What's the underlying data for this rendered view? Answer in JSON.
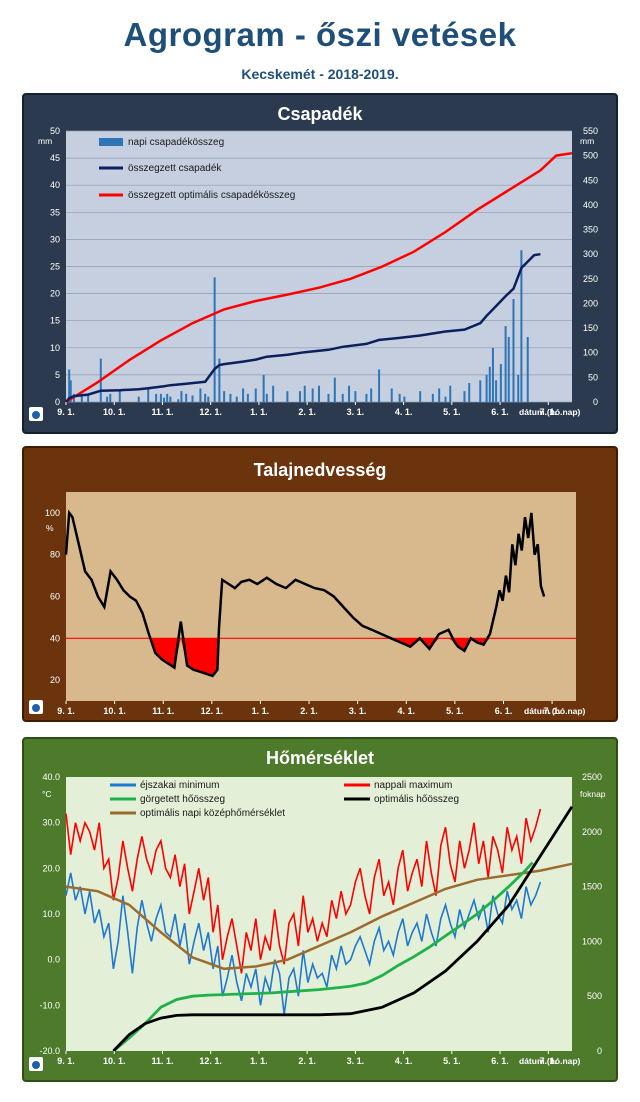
{
  "title": "Agrogram - őszi vetések",
  "subtitle": "Kecskemét - 2018-2019.",
  "colors": {
    "daily_precip": "#2e75b6",
    "cumulative_precip": "#0d1f5c",
    "optimal_precip": "#ff0000",
    "soil_moisture_line": "#000000",
    "soil_threshold": "#ff0000",
    "night_min": "#1f78d1",
    "day_max": "#ff0000",
    "rolling_heat": "#1fb24a",
    "optimal_heat": "#000000",
    "optimal_daily_mean": "#9c6b2f"
  },
  "chart_data": [
    {
      "id": "precip",
      "type": "bar+line",
      "title": "Csapadék",
      "ylabel": "mm",
      "y2label": "mm",
      "xlabel": "dátum (hó.nap)",
      "x_ticks": [
        "9. 1.",
        "10. 1.",
        "11. 1.",
        "12. 1.",
        "1. 1.",
        "2. 1.",
        "3. 1.",
        "4. 1.",
        "5. 1.",
        "6. 1.",
        "7. 1."
      ],
      "ylim": [
        0,
        50
      ],
      "y_ticks": [
        0,
        5,
        10,
        15,
        20,
        25,
        30,
        35,
        40,
        45,
        50
      ],
      "y2lim": [
        0,
        550
      ],
      "y2_ticks": [
        0,
        50,
        100,
        150,
        200,
        250,
        300,
        350,
        400,
        450,
        500,
        550
      ],
      "x_range_days": [
        0,
        320
      ],
      "legend": [
        "napi csapadékösszeg",
        "összegzett csapadék",
        "összegzett optimális csapadékösszeg"
      ],
      "grid": true,
      "daily_bars": {
        "days": [
          2,
          3,
          5,
          10,
          14,
          22,
          26,
          28,
          34,
          46,
          52,
          57,
          60,
          62,
          64,
          66,
          71,
          73,
          76,
          80,
          85,
          88,
          90,
          94,
          97,
          100,
          104,
          108,
          112,
          115,
          120,
          125,
          127,
          131,
          140,
          148,
          151,
          156,
          160,
          166,
          170,
          175,
          179,
          183,
          190,
          193,
          198,
          206,
          211,
          214,
          224,
          232,
          236,
          240,
          243,
          252,
          255,
          262,
          266,
          268,
          270,
          272,
          275,
          278,
          280,
          283,
          286,
          288,
          292
        ],
        "values": [
          6,
          4,
          1.5,
          1,
          1.5,
          8,
          1,
          1.5,
          2,
          1,
          2.5,
          1.5,
          1.5,
          0.8,
          1.5,
          1,
          0.5,
          2,
          1.5,
          1.2,
          2.5,
          1.5,
          1,
          23,
          8,
          2,
          1.5,
          1,
          2.5,
          1.5,
          2.5,
          5,
          1.5,
          3,
          2,
          2,
          3,
          2.5,
          3,
          1.5,
          4.5,
          1.5,
          3,
          2,
          1.5,
          2.5,
          6,
          2.5,
          1.5,
          1,
          2,
          1.5,
          2.5,
          1,
          3,
          2,
          3.5,
          4,
          5,
          6.5,
          10,
          4,
          7,
          14,
          12,
          19,
          5,
          28,
          12
        ]
      },
      "cumulative_precip": {
        "x": [
          0,
          2,
          5,
          14,
          22,
          34,
          46,
          52,
          62,
          66,
          76,
          85,
          88,
          94,
          97,
          100,
          112,
          120,
          127,
          140,
          151,
          166,
          175,
          190,
          198,
          211,
          224,
          240,
          252,
          262,
          266,
          270,
          278,
          283,
          288,
          292,
          296,
          300
        ],
        "y": [
          0,
          8,
          12,
          15,
          23,
          24,
          26,
          28,
          32,
          34,
          37,
          40,
          41,
          67,
          75,
          77,
          82,
          86,
          92,
          96,
          101,
          106,
          112,
          118,
          126,
          130,
          135,
          143,
          147,
          160,
          175,
          188,
          215,
          230,
          272,
          285,
          298,
          300
        ]
      },
      "optimal_precip": {
        "x": [
          0,
          20,
          40,
          60,
          80,
          100,
          120,
          140,
          160,
          180,
          200,
          220,
          240,
          260,
          280,
          300,
          310,
          320
        ],
        "y": [
          0,
          40,
          85,
          125,
          160,
          188,
          205,
          218,
          232,
          250,
          275,
          305,
          345,
          390,
          430,
          470,
          500,
          505
        ]
      }
    },
    {
      "id": "soil",
      "type": "line",
      "title": "Talajnedvesség",
      "ylabel": "%",
      "xlabel": "dátum (hó.nap)",
      "x_ticks": [
        "9. 1.",
        "10. 1.",
        "11. 1.",
        "12. 1.",
        "1. 1.",
        "2. 1.",
        "3. 1.",
        "4. 1.",
        "5. 1.",
        "6. 1.",
        "7. 1."
      ],
      "ylim": [
        10,
        110
      ],
      "y_ticks": [
        20,
        40,
        60,
        80,
        100
      ],
      "threshold": 40,
      "x_range_days": [
        0,
        320
      ],
      "grid": false,
      "moisture": {
        "x": [
          0,
          2,
          4,
          8,
          12,
          16,
          20,
          24,
          28,
          32,
          36,
          40,
          44,
          48,
          52,
          56,
          60,
          64,
          68,
          72,
          76,
          80,
          84,
          88,
          92,
          95,
          96,
          98,
          102,
          106,
          110,
          115,
          120,
          126,
          132,
          138,
          144,
          150,
          156,
          162,
          168,
          174,
          180,
          186,
          192,
          198,
          204,
          210,
          216,
          222,
          228,
          234,
          240,
          244,
          246,
          250,
          254,
          258,
          262,
          266,
          270,
          272,
          274,
          276,
          278,
          280,
          282,
          284,
          286,
          288,
          290,
          292,
          294,
          296,
          298,
          300
        ],
        "y": [
          80,
          100,
          98,
          85,
          72,
          68,
          60,
          55,
          72,
          68,
          63,
          60,
          58,
          52,
          42,
          33,
          30,
          28,
          26,
          48,
          27,
          25,
          24,
          23,
          22,
          25,
          45,
          68,
          66,
          64,
          67,
          68,
          66,
          69,
          66,
          64,
          68,
          66,
          64,
          63,
          60,
          55,
          50,
          46,
          44,
          42,
          40,
          38,
          36,
          40,
          35,
          42,
          44,
          38,
          36,
          34,
          40,
          38,
          37,
          42,
          55,
          63,
          58,
          70,
          62,
          85,
          75,
          90,
          82,
          98,
          88,
          100,
          80,
          85,
          65,
          60
        ]
      }
    },
    {
      "id": "temp",
      "type": "line",
      "title": "Hőmérséklet",
      "ylabel": "°C",
      "y2label": "foknap",
      "xlabel": "dátum (hó.nap)",
      "x_ticks": [
        "9. 1.",
        "10. 1.",
        "11. 1.",
        "12. 1.",
        "1. 1.",
        "2. 1.",
        "3. 1.",
        "4. 1.",
        "5. 1.",
        "6. 1.",
        "7. 1."
      ],
      "ylim": [
        -20,
        40
      ],
      "y_ticks": [
        -20.0,
        -10.0,
        0.0,
        10.0,
        20.0,
        30.0,
        40.0
      ],
      "y2lim": [
        0,
        2500
      ],
      "y2_ticks": [
        0,
        500,
        1000,
        1500,
        2000,
        2500
      ],
      "x_range_days": [
        0,
        320
      ],
      "legend": [
        "éjszakai minimum",
        "nappali maximum",
        "görgetett hőösszeg",
        "optimális hőösszeg",
        "optimális napi középhőmérséklet"
      ],
      "grid": false,
      "night_min": {
        "x": [
          0,
          3,
          6,
          9,
          12,
          15,
          18,
          21,
          24,
          27,
          30,
          33,
          36,
          39,
          42,
          45,
          48,
          51,
          54,
          57,
          60,
          63,
          66,
          69,
          72,
          75,
          78,
          81,
          84,
          87,
          90,
          93,
          96,
          99,
          102,
          105,
          108,
          111,
          114,
          117,
          120,
          123,
          126,
          129,
          132,
          135,
          138,
          141,
          144,
          147,
          150,
          153,
          156,
          159,
          162,
          165,
          168,
          171,
          174,
          177,
          180,
          183,
          186,
          189,
          192,
          195,
          198,
          201,
          204,
          207,
          210,
          213,
          216,
          219,
          222,
          225,
          228,
          231,
          234,
          237,
          240,
          243,
          246,
          249,
          252,
          255,
          258,
          261,
          264,
          267,
          270,
          273,
          276,
          279,
          282,
          285,
          288,
          291,
          294,
          297,
          300
        ],
        "y": [
          14,
          19,
          13,
          16,
          10,
          15,
          8,
          11,
          5,
          8,
          -2,
          4,
          14,
          6,
          -3,
          7,
          13,
          8,
          4,
          9,
          12,
          6,
          5,
          10,
          3,
          8,
          -1,
          4,
          8,
          2,
          6,
          -2,
          3,
          -8,
          -4,
          1,
          -5,
          -9,
          -3,
          -6,
          -2,
          -10,
          -4,
          -7,
          0,
          -3,
          -12,
          -4,
          -2,
          -8,
          2,
          -5,
          -1,
          -4,
          -3,
          -6,
          1,
          -2,
          3,
          -1,
          0,
          3,
          5,
          2,
          -1,
          4,
          7,
          2,
          4,
          1,
          6,
          9,
          3,
          6,
          8,
          4,
          10,
          6,
          3,
          9,
          12,
          8,
          5,
          11,
          7,
          10,
          13,
          9,
          12,
          6,
          14,
          10,
          8,
          15,
          11,
          13,
          9,
          16,
          12,
          14,
          17
        ]
      },
      "day_max": {
        "x": [
          0,
          3,
          6,
          9,
          12,
          15,
          18,
          21,
          24,
          27,
          30,
          33,
          36,
          39,
          42,
          45,
          48,
          51,
          54,
          57,
          60,
          63,
          66,
          69,
          72,
          75,
          78,
          81,
          84,
          87,
          90,
          93,
          96,
          99,
          102,
          105,
          108,
          111,
          114,
          117,
          120,
          123,
          126,
          129,
          132,
          135,
          138,
          141,
          144,
          147,
          150,
          153,
          156,
          159,
          162,
          165,
          168,
          171,
          174,
          177,
          180,
          183,
          186,
          189,
          192,
          195,
          198,
          201,
          204,
          207,
          210,
          213,
          216,
          219,
          222,
          225,
          228,
          231,
          234,
          237,
          240,
          243,
          246,
          249,
          252,
          255,
          258,
          261,
          264,
          267,
          270,
          273,
          276,
          279,
          282,
          285,
          288,
          291,
          294,
          297,
          300
        ],
        "y": [
          32,
          23,
          30,
          26,
          30,
          28,
          24,
          30,
          20,
          22,
          13,
          18,
          26,
          20,
          15,
          22,
          27,
          22,
          19,
          24,
          26,
          20,
          18,
          23,
          16,
          21,
          10,
          15,
          20,
          13,
          18,
          6,
          12,
          0,
          5,
          9,
          3,
          -3,
          6,
          2,
          9,
          0,
          5,
          2,
          11,
          3,
          -1,
          8,
          10,
          3,
          14,
          6,
          9,
          4,
          8,
          5,
          13,
          9,
          15,
          10,
          12,
          17,
          20,
          14,
          10,
          18,
          22,
          14,
          17,
          12,
          20,
          24,
          15,
          19,
          22,
          16,
          26,
          19,
          14,
          25,
          29,
          21,
          17,
          26,
          20,
          24,
          30,
          21,
          26,
          18,
          27,
          24,
          19,
          29,
          24,
          27,
          21,
          31,
          26,
          29,
          33
        ]
      },
      "rolling_heat_sum": {
        "x": [
          30,
          40,
          50,
          60,
          70,
          80,
          90,
          100,
          110,
          120,
          130,
          140,
          150,
          160,
          170,
          180,
          190,
          200,
          210,
          220,
          230,
          240,
          250,
          260,
          270,
          280,
          290,
          295
        ],
        "y": [
          0,
          120,
          250,
          400,
          470,
          500,
          510,
          515,
          520,
          525,
          530,
          540,
          550,
          560,
          575,
          590,
          620,
          690,
          780,
          860,
          950,
          1050,
          1150,
          1250,
          1370,
          1500,
          1640,
          1720
        ]
      },
      "optimal_heat_sum": {
        "x": [
          30,
          40,
          50,
          60,
          70,
          80,
          100,
          120,
          140,
          160,
          180,
          200,
          220,
          240,
          260,
          280,
          300,
          320
        ],
        "y": [
          0,
          150,
          250,
          300,
          325,
          330,
          330,
          330,
          330,
          330,
          340,
          400,
          530,
          730,
          1000,
          1330,
          1780,
          2230
        ]
      },
      "optimal_daily_mean": {
        "x": [
          0,
          20,
          40,
          60,
          80,
          100,
          120,
          140,
          160,
          180,
          200,
          220,
          240,
          260,
          280,
          300,
          320
        ],
        "y": [
          16,
          15,
          12,
          6,
          0.5,
          -2,
          -1.5,
          0,
          3,
          6,
          9.5,
          12.5,
          15.5,
          17.5,
          18.5,
          19.5,
          21
        ]
      }
    }
  ]
}
